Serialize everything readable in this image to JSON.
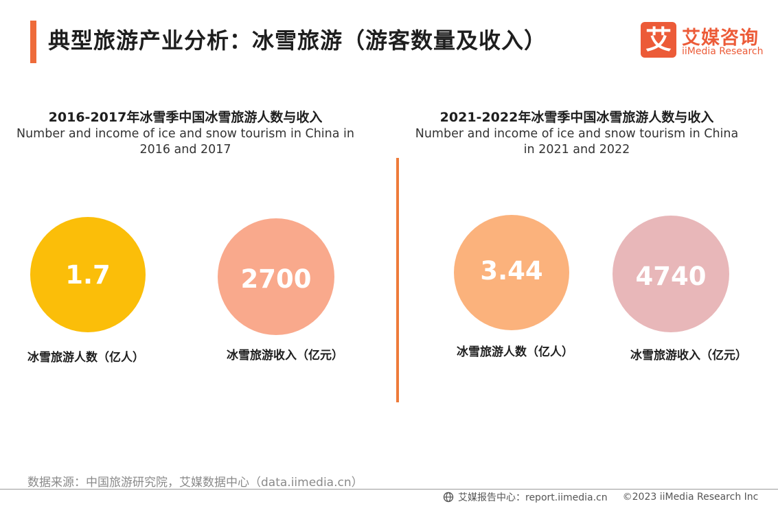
{
  "header": {
    "title": "典型旅游产业分析：冰雪旅游（游客数量及收入）",
    "brand_mark": "艾",
    "brand_cn": "艾媒咨询",
    "brand_en": "iiMedia Research"
  },
  "chart_data": [
    {
      "type": "bubble",
      "title": "2016-2017年冰雪季中国冰雪旅游人数与收入",
      "subtitle_lines": [
        "Number and income of ice and snow tourism in China in",
        "2016 and 2017"
      ],
      "items": [
        {
          "label": "冰雪旅游人数（亿人）",
          "value": "1.7",
          "color": "#fbbe09"
        },
        {
          "label": "冰雪旅游收入（亿元）",
          "value": "2700",
          "color": "#f9a98c"
        }
      ]
    },
    {
      "type": "bubble",
      "title": "2021-2022年冰雪季中国冰雪旅游人数与收入",
      "subtitle_lines": [
        "Number and income of ice and snow tourism in China",
        "in 2021 and 2022"
      ],
      "items": [
        {
          "label": "冰雪旅游人数（亿人）",
          "value": "3.44",
          "color": "#fbb27c"
        },
        {
          "label": "冰雪旅游收入（亿元）",
          "value": "4740",
          "color": "#e8b7b9"
        }
      ]
    }
  ],
  "footer": {
    "source": "数据来源：中国旅游研究院，艾媒数据中心（data.iimedia.cn）",
    "report_center": "艾媒报告中心：report.iimedia.cn",
    "copyright": "©2023  iiMedia Research  Inc"
  },
  "colors": {
    "accent": "#ee6b3a",
    "brand": "#ec5b38"
  }
}
